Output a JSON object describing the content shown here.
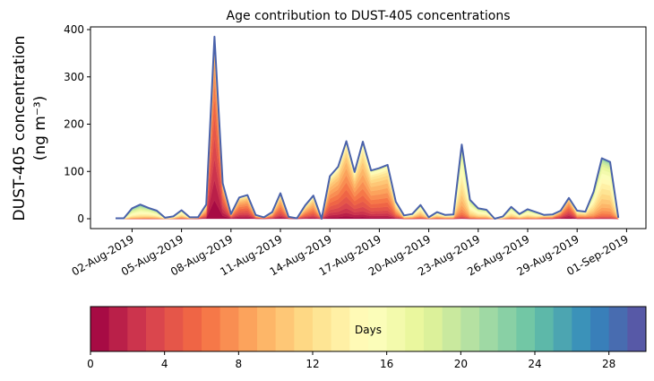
{
  "chart_data": {
    "type": "area",
    "stacked": true,
    "title": "Age contribution to DUST-405 concentrations",
    "ylabel_line1": "DUST-405 concentration",
    "ylabel_line2": "(ng m⁻³)",
    "xlabel": "",
    "ylim": [
      -20,
      405
    ],
    "yticks": [
      0,
      100,
      200,
      300,
      400
    ],
    "start_date": "01-Aug-2019 00:00",
    "time_step_hours": 12,
    "xticks": [
      {
        "day": 1,
        "label": "02-Aug-2019"
      },
      {
        "day": 4,
        "label": "05-Aug-2019"
      },
      {
        "day": 7,
        "label": "08-Aug-2019"
      },
      {
        "day": 10,
        "label": "11-Aug-2019"
      },
      {
        "day": 13,
        "label": "14-Aug-2019"
      },
      {
        "day": 16,
        "label": "17-Aug-2019"
      },
      {
        "day": 19,
        "label": "20-Aug-2019"
      },
      {
        "day": 22,
        "label": "23-Aug-2019"
      },
      {
        "day": 25,
        "label": "26-Aug-2019"
      },
      {
        "day": 28,
        "label": "29-Aug-2019"
      },
      {
        "day": 31,
        "label": "01-Sep-2019"
      }
    ],
    "total": [
      1,
      1,
      22,
      30,
      23,
      17,
      2,
      5,
      18,
      3,
      3,
      30,
      385,
      75,
      10,
      45,
      50,
      8,
      3,
      14,
      54,
      4,
      1,
      28,
      49,
      0,
      90,
      110,
      164,
      99,
      163,
      102,
      107,
      114,
      36,
      7,
      10,
      29,
      3,
      14,
      8,
      9,
      157,
      40,
      22,
      19,
      0,
      5,
      25,
      10,
      20,
      14,
      8,
      9,
      17,
      44,
      17,
      15,
      57,
      128,
      120,
      2
    ],
    "mean_age_days": [
      16,
      16,
      16,
      16,
      15,
      15,
      14,
      14,
      13,
      12,
      10,
      8,
      3,
      4,
      6,
      6,
      6,
      8,
      8,
      8,
      7,
      7,
      7,
      8,
      8,
      0,
      7,
      7,
      7,
      7,
      8,
      8,
      8,
      8,
      9,
      12,
      12,
      12,
      12,
      12,
      12,
      12,
      13,
      14,
      14,
      14,
      14,
      14,
      14,
      14,
      14,
      14,
      10,
      10,
      6,
      5,
      10,
      10,
      13,
      13,
      13,
      13
    ],
    "colorbar": {
      "label": "Days",
      "ticks": [
        0,
        4,
        8,
        12,
        16,
        20,
        24,
        28
      ],
      "range": [
        0,
        30
      ],
      "n_bins": 30,
      "colormap_stops": [
        "#9e0142",
        "#d53e4f",
        "#f46d43",
        "#fdae61",
        "#fee08b",
        "#ffffbf",
        "#e6f598",
        "#abdda4",
        "#66c2a5",
        "#3288bd",
        "#5e4fa2"
      ]
    },
    "outline_color": "#4a62ab"
  }
}
